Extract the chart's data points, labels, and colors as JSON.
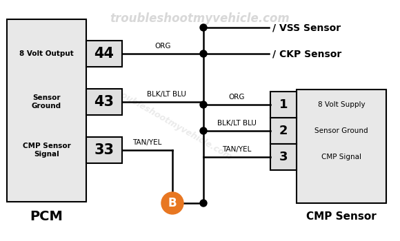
{
  "bg_color": "#ffffff",
  "watermark_text": "troubleshootmyvehicle.com",
  "pcm_label": "PCM",
  "cmp_sensor_label": "CMP Sensor",
  "vss_label": "/ VSS Sensor",
  "ckp_label": "/ CKP Sensor",
  "connector_B_color": "#e87722",
  "line_color": "#000000",
  "box_fill": "#e8e8e8",
  "pin_fill": "#e0e0e0"
}
